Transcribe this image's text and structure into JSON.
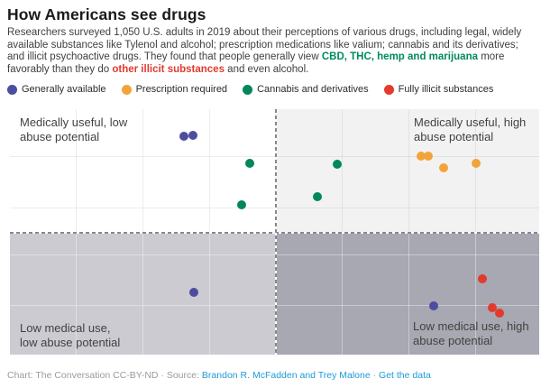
{
  "header": {
    "title": "How Americans see drugs",
    "description_parts": [
      {
        "text": "Researchers surveyed 1,050 U.S. adults in 2019 about their perceptions of various drugs, including legal, widely available substances like Tylenol and alcohol; prescription medications like valium; cannabis and its derivatives; and illicit psychoactive drugs. They found that people generally view ",
        "style": "plain"
      },
      {
        "text": "CBD, THC, hemp and marijuana",
        "style": "green"
      },
      {
        "text": " more favorably than they do ",
        "style": "plain"
      },
      {
        "text": "other illicit substances",
        "style": "red"
      },
      {
        "text": " and even alcohol.",
        "style": "plain"
      }
    ]
  },
  "legend": [
    {
      "label": "Generally available",
      "color": "#4d4d9f"
    },
    {
      "label": "Prescription required",
      "color": "#f2a43a"
    },
    {
      "label": "Cannabis and derivatives",
      "color": "#00875a"
    },
    {
      "label": "Fully illicit substances",
      "color": "#e23b2e"
    }
  ],
  "chart_data": {
    "type": "scatter",
    "title": "How Americans see drugs",
    "axes_note": "no numeric axes or tick labels shown; point coordinates are percent of plot area (x: left to right, y: top to bottom)",
    "coordinate_units": "percent_of_plot_area",
    "quadrants": [
      {
        "position": "top-left",
        "label_lines": [
          "Medically useful, low",
          "abuse potential"
        ],
        "bg": "#ffffff"
      },
      {
        "position": "top-right",
        "label_lines": [
          "Medically useful, high",
          "abuse potential"
        ],
        "bg": "#f2f2f3"
      },
      {
        "position": "bottom-left",
        "label_lines": [
          "Low medical use,",
          "low abuse potential"
        ],
        "bg": "#cbcbd1"
      },
      {
        "position": "bottom-right",
        "label_lines": [
          "Low medical use, high",
          "abuse potential"
        ],
        "bg": "#a7a8b1"
      }
    ],
    "gridlines": {
      "vertical_pct": [
        12.4,
        25.0,
        37.6,
        50.1,
        62.7,
        75.3,
        87.9
      ],
      "horizontal_pct": [
        19.1,
        40.1,
        59.2,
        79.8
      ]
    },
    "quadrant_divider_pct": {
      "x": 50.1,
      "y": 50.0
    },
    "series": [
      {
        "name": "Generally available",
        "color": "#4d4d9f",
        "points": [
          {
            "x": 32.9,
            "y": 11.0
          },
          {
            "x": 34.6,
            "y": 10.7
          },
          {
            "x": 34.8,
            "y": 74.6
          },
          {
            "x": 80.1,
            "y": 80.1
          }
        ]
      },
      {
        "name": "Prescription required",
        "color": "#f2a43a",
        "points": [
          {
            "x": 77.7,
            "y": 19.1
          },
          {
            "x": 79.0,
            "y": 19.1
          },
          {
            "x": 81.9,
            "y": 23.9
          },
          {
            "x": 88.1,
            "y": 22.1
          }
        ]
      },
      {
        "name": "Cannabis and derivatives",
        "color": "#00875a",
        "points": [
          {
            "x": 45.3,
            "y": 22.1
          },
          {
            "x": 43.8,
            "y": 39.0
          },
          {
            "x": 61.8,
            "y": 22.4
          },
          {
            "x": 58.1,
            "y": 35.7
          }
        ]
      },
      {
        "name": "Fully illicit substances",
        "color": "#e23b2e",
        "points": [
          {
            "x": 89.3,
            "y": 69.1
          },
          {
            "x": 91.1,
            "y": 80.9
          },
          {
            "x": 92.5,
            "y": 83.1
          }
        ]
      }
    ]
  },
  "footer": {
    "parts": [
      {
        "text": "Chart: The Conversation CC-BY-ND · Source: ",
        "style": "plain"
      },
      {
        "text": "Brandon R. McFadden and Trey Malone",
        "style": "link"
      },
      {
        "text": " · ",
        "style": "plain"
      },
      {
        "text": "Get the data",
        "style": "link"
      }
    ]
  }
}
